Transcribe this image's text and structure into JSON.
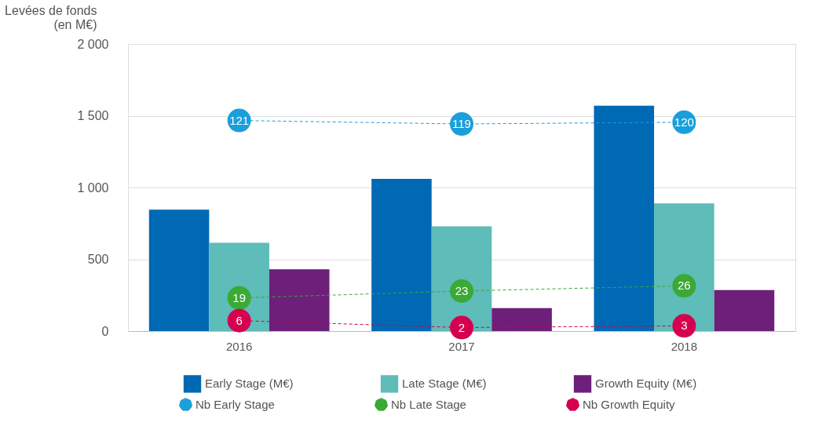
{
  "chart_data": {
    "type": "bar",
    "ylabel": "Levées de fonds\n(en M€)",
    "categories": [
      "2016",
      "2017",
      "2018"
    ],
    "series": [
      {
        "name": "Early Stage (M€)",
        "color": "#0069b4",
        "values": [
          845,
          1060,
          1570
        ]
      },
      {
        "name": "Late Stage (M€)",
        "color": "#5ebcb9",
        "values": [
          615,
          730,
          890
        ]
      },
      {
        "name": "Growth Equity (M€)",
        "color": "#6d1f7a",
        "values": [
          430,
          160,
          285
        ]
      },
      {
        "name": "Nb Early Stage",
        "type": "line",
        "axis": "y2",
        "color": "#1a9fdb",
        "marker": "circle",
        "line_style": "dashed",
        "values": [
          121,
          119,
          120
        ],
        "value_labels": [
          "121",
          "119",
          "120"
        ]
      },
      {
        "name": "Nb Late Stage",
        "type": "line",
        "axis": "y2",
        "color": "#3aa935",
        "marker": "circle",
        "line_style": "dashed",
        "values": [
          19,
          23,
          26
        ],
        "value_labels": [
          "19",
          "23",
          "26"
        ]
      },
      {
        "name": "Nb Growth Equity",
        "type": "line",
        "axis": "y2",
        "color": "#d5004f",
        "marker": "circle",
        "line_style": "dashed",
        "values": [
          6,
          2,
          3
        ],
        "value_labels": [
          "6",
          "2",
          "3"
        ]
      }
    ],
    "ylim": [
      0,
      2000
    ],
    "yticks": [
      0,
      500,
      {
        "value": 1000,
        "label": "1 000"
      },
      {
        "value": 1500,
        "label": "1 500"
      },
      {
        "value": 2000,
        "label": "2 000"
      }
    ],
    "y2lim": [
      0,
      165
    ],
    "grid": "y",
    "legend": "bottom"
  }
}
